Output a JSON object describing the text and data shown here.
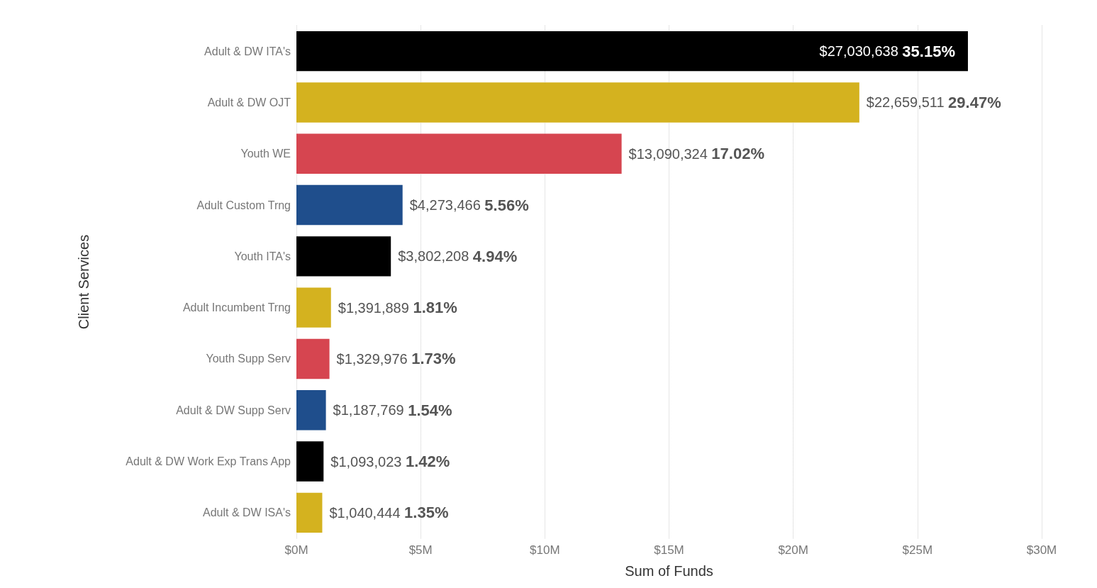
{
  "chart_data": {
    "type": "bar",
    "orientation": "horizontal",
    "xlabel": "Sum of Funds",
    "ylabel": "Client Services",
    "categories": [
      "Adult & DW ITA's",
      "Adult & DW OJT",
      "Youth WE",
      "Adult Custom Trng",
      "Youth ITA's",
      "Adult Incumbent Trng",
      "Youth Supp Serv",
      "Adult & DW Supp Serv",
      "Adult & DW Work Exp Trans App",
      "Adult & DW ISA's"
    ],
    "values": [
      27030638,
      22659511,
      13090324,
      4273466,
      3802208,
      1391889,
      1329976,
      1187769,
      1093023,
      1040444
    ],
    "colors": [
      "#000000",
      "#d4b21f",
      "#d64550",
      "#1f4e8c",
      "#000000",
      "#d4b21f",
      "#d64550",
      "#1f4e8c",
      "#000000",
      "#d4b21f"
    ],
    "value_labels": [
      "$27,030,638 35.15%",
      "$22,659,511 29.47%",
      "$13,090,324 17.02%",
      "$4,273,466 5.56%",
      "$3,802,208 4.94%",
      "$1,391,889 1.81%",
      "$1,329,976 1.73%",
      "$1,187,769 1.54%",
      "$1,093,023 1.42%",
      "$1,040,444 1.35%"
    ],
    "xlim": [
      0,
      30000000
    ],
    "xticks": [
      {
        "value": 0,
        "label": "$0M"
      },
      {
        "value": 5000000,
        "label": "$5M"
      },
      {
        "value": 10000000,
        "label": "$10M"
      },
      {
        "value": 15000000,
        "label": "$15M"
      },
      {
        "value": 20000000,
        "label": "$20M"
      },
      {
        "value": 25000000,
        "label": "$25M"
      },
      {
        "value": 30000000,
        "label": "$30M"
      }
    ],
    "grid": "x"
  }
}
